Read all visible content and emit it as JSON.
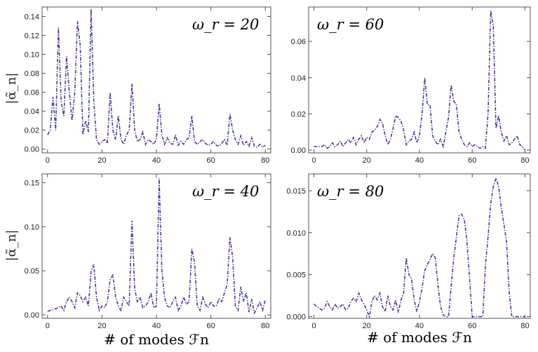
{
  "chart_data": [
    {
      "type": "line",
      "title": "ω_r = 20",
      "xlabel": "",
      "ylabel": "|α̃_n|",
      "xlim": [
        -2,
        82
      ],
      "ylim": [
        -0.004,
        0.15
      ],
      "xticks": [
        0,
        20,
        40,
        60,
        80
      ],
      "yticks": [
        0,
        0.02,
        0.04,
        0.06,
        0.08,
        0.1,
        0.12,
        0.14
      ],
      "ytick_labels": [
        "0.00",
        "0.02",
        "0.04",
        "0.06",
        "0.08",
        "0.10",
        "0.12",
        "0.14"
      ],
      "series": [
        {
          "name": "ω_r = 20",
          "x": [
            0,
            1,
            2,
            3,
            4,
            5,
            6,
            7,
            8,
            9,
            10,
            11,
            12,
            13,
            14,
            15,
            16,
            17,
            18,
            19,
            20,
            21,
            22,
            23,
            24,
            25,
            26,
            27,
            28,
            29,
            30,
            31,
            32,
            33,
            34,
            35,
            36,
            37,
            38,
            39,
            40,
            41,
            42,
            43,
            44,
            45,
            46,
            47,
            48,
            49,
            50,
            51,
            52,
            53,
            54,
            55,
            56,
            57,
            58,
            59,
            60,
            61,
            62,
            63,
            64,
            65,
            66,
            67,
            68,
            69,
            70,
            71,
            72,
            73,
            74,
            75,
            76,
            77,
            78,
            79,
            80
          ],
          "values": [
            0.015,
            0.02,
            0.055,
            0.02,
            0.128,
            0.05,
            0.035,
            0.098,
            0.06,
            0.03,
            0.06,
            0.135,
            0.11,
            0.015,
            0.03,
            0.018,
            0.148,
            0.05,
            0.01,
            0.005,
            0.008,
            0.01,
            0.006,
            0.06,
            0.02,
            0.01,
            0.035,
            0.01,
            0.005,
            0.015,
            0.02,
            0.069,
            0.02,
            0.008,
            0.01,
            0.018,
            0.005,
            0.01,
            0.008,
            0.005,
            0.01,
            0.048,
            0.015,
            0.005,
            0.012,
            0.006,
            0.005,
            0.015,
            0.004,
            0.008,
            0.005,
            0.01,
            0.012,
            0.035,
            0.008,
            0.005,
            0.008,
            0.01,
            0.006,
            0.004,
            0.005,
            0.008,
            0.004,
            0.003,
            0.006,
            0.01,
            0.004,
            0.037,
            0.02,
            0.01,
            0.005,
            0.014,
            0.004,
            0.008,
            0.003,
            0.012,
            0.003,
            0.002,
            0.005,
            0.002,
            0.004
          ]
        }
      ]
    },
    {
      "type": "line",
      "title": "ω_r = 60",
      "xlabel": "",
      "ylabel": "",
      "xlim": [
        -2,
        82
      ],
      "ylim": [
        -0.0015,
        0.079
      ],
      "xticks": [
        0,
        20,
        40,
        60,
        80
      ],
      "yticks": [
        0,
        0.02,
        0.04,
        0.06
      ],
      "ytick_labels": [
        "0.00",
        "0.02",
        "0.04",
        "0.06"
      ],
      "series": [
        {
          "name": "ω_r = 60",
          "x": [
            0,
            1,
            2,
            3,
            4,
            5,
            6,
            7,
            8,
            9,
            10,
            11,
            12,
            13,
            14,
            15,
            16,
            17,
            18,
            19,
            20,
            21,
            22,
            23,
            24,
            25,
            26,
            27,
            28,
            29,
            30,
            31,
            32,
            33,
            34,
            35,
            36,
            37,
            38,
            39,
            40,
            41,
            42,
            43,
            44,
            45,
            46,
            47,
            48,
            49,
            50,
            51,
            52,
            53,
            54,
            55,
            56,
            57,
            58,
            59,
            60,
            61,
            62,
            63,
            64,
            65,
            66,
            67,
            68,
            69,
            70,
            71,
            72,
            73,
            74,
            75,
            76,
            77,
            78,
            79,
            80
          ],
          "values": [
            0.002,
            0.002,
            0.002,
            0.002,
            0.003,
            0.001,
            0.002,
            0.004,
            0.002,
            0.003,
            0.005,
            0.002,
            0.004,
            0.006,
            0.004,
            0.007,
            0.003,
            0.006,
            0.008,
            0.004,
            0.007,
            0.006,
            0.01,
            0.011,
            0.013,
            0.017,
            0.015,
            0.008,
            0.003,
            0.006,
            0.012,
            0.019,
            0.018,
            0.016,
            0.011,
            0.003,
            0.005,
            0.006,
            0.01,
            0.004,
            0.008,
            0.02,
            0.04,
            0.025,
            0.025,
            0.008,
            0.005,
            0.003,
            0.006,
            0.002,
            0.01,
            0.018,
            0.036,
            0.027,
            0.025,
            0.01,
            0.006,
            0.003,
            0.002,
            0.004,
            0.002,
            0.003,
            0.002,
            0.001,
            0.002,
            0.001,
            0.02,
            0.077,
            0.068,
            0.012,
            0.019,
            0.01,
            0.005,
            0.008,
            0.003,
            0.004,
            0.006,
            0.008,
            0.003,
            0.002,
            0.0
          ]
        }
      ]
    },
    {
      "type": "line",
      "title": "ω_r = 40",
      "xlabel": "# of modes ℱn",
      "ylabel": "|α̃_n|",
      "xlim": [
        -2,
        82
      ],
      "ylim": [
        -0.004,
        0.16
      ],
      "xticks": [
        0,
        20,
        40,
        60,
        80
      ],
      "yticks": [
        0,
        0.05,
        0.1,
        0.15
      ],
      "ytick_labels": [
        "0.00",
        "0.05",
        "0.10",
        "0.15"
      ],
      "series": [
        {
          "name": "ω_r = 40",
          "x": [
            0,
            1,
            2,
            3,
            4,
            5,
            6,
            7,
            8,
            9,
            10,
            11,
            12,
            13,
            14,
            15,
            16,
            17,
            18,
            19,
            20,
            21,
            22,
            23,
            24,
            25,
            26,
            27,
            28,
            29,
            30,
            31,
            32,
            33,
            34,
            35,
            36,
            37,
            38,
            39,
            40,
            41,
            42,
            43,
            44,
            45,
            46,
            47,
            48,
            49,
            50,
            51,
            52,
            53,
            54,
            55,
            56,
            57,
            58,
            59,
            60,
            61,
            62,
            63,
            64,
            65,
            66,
            67,
            68,
            69,
            70,
            71,
            72,
            73,
            74,
            75,
            76,
            77,
            78,
            79,
            80
          ],
          "values": [
            0.004,
            0.005,
            0.006,
            0.007,
            0.008,
            0.01,
            0.005,
            0.015,
            0.02,
            0.015,
            0.008,
            0.025,
            0.022,
            0.015,
            0.02,
            0.01,
            0.05,
            0.057,
            0.02,
            0.005,
            0.01,
            0.008,
            0.015,
            0.04,
            0.045,
            0.02,
            0.01,
            0.005,
            0.02,
            0.015,
            0.01,
            0.107,
            0.03,
            0.015,
            0.02,
            0.008,
            0.01,
            0.015,
            0.025,
            0.008,
            0.01,
            0.155,
            0.05,
            0.02,
            0.01,
            0.008,
            0.015,
            0.02,
            0.005,
            0.01,
            0.02,
            0.012,
            0.015,
            0.075,
            0.06,
            0.01,
            0.005,
            0.02,
            0.012,
            0.008,
            0.015,
            0.01,
            0.01,
            0.018,
            0.015,
            0.025,
            0.035,
            0.088,
            0.065,
            0.01,
            0.005,
            0.032,
            0.015,
            0.025,
            0.003,
            0.018,
            0.002,
            0.008,
            0.015,
            0.005,
            0.017
          ]
        }
      ]
    },
    {
      "type": "line",
      "title": "ω_r = 80",
      "xlabel": "# of modes ℱn",
      "ylabel": "",
      "xlim": [
        -2,
        82
      ],
      "ylim": [
        -0.0002,
        0.017
      ],
      "xticks": [
        0,
        20,
        40,
        60,
        80
      ],
      "yticks": [
        0,
        0.005,
        0.01,
        0.015
      ],
      "ytick_labels": [
        "0.000",
        "0.005",
        "0.010",
        "0.015"
      ],
      "series": [
        {
          "name": "ω_r = 80",
          "x": [
            0,
            1,
            2,
            3,
            4,
            5,
            6,
            7,
            8,
            9,
            10,
            11,
            12,
            13,
            14,
            15,
            16,
            17,
            18,
            19,
            20,
            21,
            22,
            23,
            24,
            25,
            26,
            27,
            28,
            29,
            30,
            31,
            32,
            33,
            34,
            35,
            36,
            37,
            38,
            39,
            40,
            41,
            42,
            43,
            44,
            45,
            46,
            47,
            48,
            49,
            50,
            51,
            52,
            53,
            54,
            55,
            56,
            57,
            58,
            59,
            60,
            61,
            62,
            63,
            64,
            65,
            66,
            67,
            68,
            69,
            70,
            71,
            72,
            73,
            74,
            75,
            76,
            77,
            78,
            79,
            80
          ],
          "values": [
            0.0015,
            0.0012,
            0.001,
            0.0008,
            0.001,
            0.0018,
            0.0012,
            0.0008,
            0.0015,
            0.001,
            0.0012,
            0.0015,
            0.0008,
            0.001,
            0.0018,
            0.0022,
            0.0018,
            0.0028,
            0.002,
            0.0015,
            0.0008,
            0.0,
            0.0018,
            0.0025,
            0.002,
            0.0028,
            0.0012,
            0.0006,
            0.0025,
            0.0012,
            0.0008,
            0.002,
            0.0005,
            0.002,
            0.0028,
            0.007,
            0.005,
            0.0045,
            0.002,
            0.0006,
            0.0018,
            0.0035,
            0.0055,
            0.0062,
            0.0068,
            0.0075,
            0.007,
            0.0038,
            0.0012,
            0.0002,
            0.0,
            0.0,
            0.0035,
            0.007,
            0.0095,
            0.012,
            0.0122,
            0.0115,
            0.009,
            0.0045,
            0.0,
            0.0,
            0.0,
            0.0,
            0.0,
            0.006,
            0.0095,
            0.0135,
            0.0155,
            0.0165,
            0.0155,
            0.013,
            0.011,
            0.009,
            0.003,
            0.0,
            0.0,
            0.0,
            0.0,
            0.0,
            0.0
          ]
        }
      ]
    }
  ]
}
